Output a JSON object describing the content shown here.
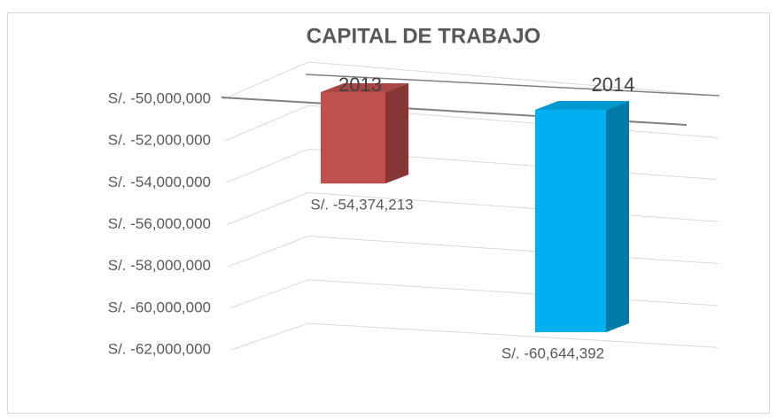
{
  "chart_data": {
    "type": "bar",
    "title": "CAPITAL DE TRABAJO",
    "categories": [
      "2013",
      "2014"
    ],
    "values": [
      -54374213,
      -60644392
    ],
    "value_labels": [
      "S/. -54,374,213",
      "S/. -60,644,392"
    ],
    "colors": [
      "#c0504d",
      "#00b0f0"
    ],
    "ylim": [
      -62000000,
      -50000000
    ],
    "yticks": [
      {
        "value": -50000000,
        "label": "S/. -50,000,000"
      },
      {
        "value": -52000000,
        "label": "S/. -52,000,000"
      },
      {
        "value": -54000000,
        "label": "S/. -54,000,000"
      },
      {
        "value": -56000000,
        "label": "S/. -56,000,000"
      },
      {
        "value": -58000000,
        "label": "S/. -58,000,000"
      },
      {
        "value": -60000000,
        "label": "S/. -60,000,000"
      },
      {
        "value": -62000000,
        "label": "S/. -62,000,000"
      }
    ],
    "grid": true
  }
}
